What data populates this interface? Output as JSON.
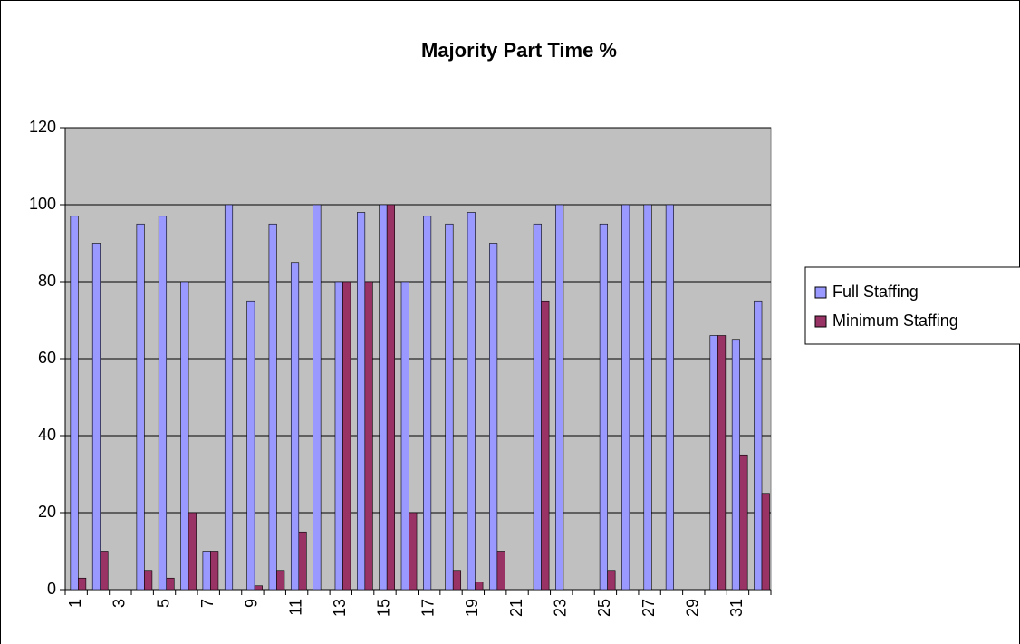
{
  "chart_data": {
    "type": "bar",
    "title": "Majority Part Time %",
    "categories": [
      "1",
      null,
      "3",
      null,
      "5",
      null,
      "7",
      null,
      "9",
      null,
      "11",
      null,
      "13",
      null,
      "15",
      null,
      "17",
      null,
      "19",
      null,
      "21",
      null,
      "23",
      null,
      "25",
      null,
      "27",
      null,
      "29",
      null,
      "31",
      null
    ],
    "series": [
      {
        "name": "Full Staffing",
        "color": "#9999ff",
        "values": [
          97,
          90,
          0,
          95,
          97,
          80,
          10,
          100,
          75,
          95,
          85,
          100,
          80,
          98,
          100,
          80,
          97,
          95,
          98,
          90,
          0,
          95,
          100,
          0,
          95,
          100,
          100,
          100,
          0,
          66,
          65,
          75
        ]
      },
      {
        "name": "Minimum Staffing",
        "color": "#993366",
        "values": [
          3,
          10,
          0,
          5,
          3,
          20,
          10,
          0,
          1,
          5,
          15,
          0,
          80,
          80,
          100,
          20,
          0,
          5,
          2,
          10,
          0,
          75,
          0,
          0,
          5,
          0,
          0,
          0,
          0,
          66,
          35,
          25
        ]
      }
    ],
    "ylim": [
      0,
      120
    ],
    "yticks": [
      0,
      20,
      40,
      60,
      80,
      100,
      120
    ],
    "grid": true,
    "legend": "right",
    "plot_background": "#c0c0c0"
  }
}
